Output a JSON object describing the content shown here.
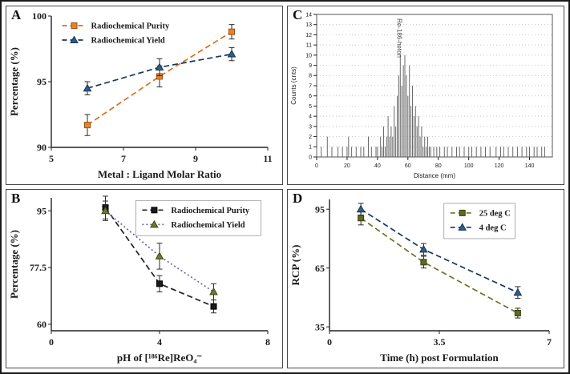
{
  "figure": {
    "panels": [
      {
        "label": "A"
      },
      {
        "label": "C"
      },
      {
        "label": "B"
      },
      {
        "label": "D"
      }
    ]
  },
  "colors": {
    "purity_orange": "#e8832c",
    "yield_blue": "#2e5f8a",
    "olive_green": "#6e7b2f",
    "axis_black": "#222222"
  },
  "chart_data": [
    {
      "panel": "A",
      "type": "line",
      "xlabel": "Metal : Ligand Molar Ratio",
      "ylabel": "Percentage (%)",
      "xlim": [
        5,
        11
      ],
      "ylim": [
        90,
        100
      ],
      "xticks": [
        5,
        7,
        9,
        11
      ],
      "yticks": [
        90,
        95,
        100
      ],
      "margins": {
        "l": 56,
        "r": 18,
        "t": 12,
        "b": 46
      },
      "tick_font": 12,
      "label_font": 13,
      "legend": {
        "x": 0.05,
        "y": 0.0,
        "box": false
      },
      "series": [
        {
          "name": "Radiochemical Purity",
          "marker": "square",
          "color": "#e8832c",
          "edge": "#9a4f0f",
          "line_color": "#d96f1e",
          "linestyle": "dashed",
          "x": [
            6,
            8,
            10
          ],
          "y": [
            91.7,
            95.4,
            98.8
          ],
          "yerr": [
            0.8,
            0.8,
            0.55
          ]
        },
        {
          "name": "Radiochemical Yield",
          "marker": "triangle",
          "color": "#2e5f8a",
          "edge": "#16324f",
          "line_color": "#17365d",
          "linestyle": "dashed",
          "x": [
            6,
            8,
            10
          ],
          "y": [
            94.5,
            96.1,
            97.1
          ],
          "yerr": [
            0.5,
            0.65,
            0.5
          ]
        }
      ]
    },
    {
      "panel": "C",
      "type": "spikes",
      "xlabel": "Distance (mm)",
      "ylabel": "Counts (cnts)",
      "xlim": [
        0,
        155
      ],
      "ylim": [
        0,
        14
      ],
      "xticks": [
        0,
        20,
        40,
        60,
        80,
        100,
        120,
        140
      ],
      "yticks": [
        0,
        1,
        2,
        3,
        4,
        5,
        6,
        7,
        8,
        9,
        10,
        11,
        12,
        13,
        14
      ],
      "margins": {
        "l": 36,
        "r": 14,
        "t": 10,
        "b": 34
      },
      "tick_font": 7,
      "label_font": 8,
      "grid": true,
      "frame": true,
      "annotation": {
        "text": "Re-186-heton",
        "x": 53,
        "y": 13.6,
        "rotate": 90
      },
      "spikes": {
        "x0": 0,
        "dx": 1,
        "color": "#6a6a6a",
        "values": [
          1,
          0,
          0,
          1,
          0,
          0,
          0,
          2,
          0,
          0,
          1,
          0,
          0,
          0,
          1,
          0,
          0,
          1,
          0,
          0,
          1,
          2,
          0,
          1,
          0,
          0,
          1,
          0,
          0,
          1,
          0,
          1,
          0,
          0,
          2,
          0,
          1,
          0,
          0,
          1,
          1,
          0,
          2,
          1,
          3,
          1,
          2,
          4,
          2,
          3,
          2,
          5,
          3,
          6,
          8,
          10,
          7,
          9,
          10,
          8,
          6,
          9,
          5,
          7,
          4,
          5,
          3,
          4,
          2,
          3,
          1,
          2,
          1,
          2,
          1,
          1,
          0,
          1,
          0,
          1,
          0,
          1,
          0,
          0,
          1,
          0,
          1,
          0,
          0,
          1,
          0,
          0,
          1,
          0,
          1,
          0,
          0,
          1,
          0,
          0,
          1,
          0,
          1,
          0,
          0,
          1,
          0,
          0,
          1,
          0,
          0,
          1,
          0,
          0,
          1,
          0,
          0,
          0,
          1,
          0,
          0,
          1,
          0,
          1,
          0,
          0,
          1,
          0,
          0,
          1,
          0,
          0,
          1,
          0,
          0,
          1,
          0,
          0,
          1,
          0,
          1,
          0,
          0,
          1,
          0,
          1,
          0,
          0,
          1,
          0,
          1
        ]
      }
    },
    {
      "panel": "B",
      "type": "line",
      "xlabel": "pH of [¹⁸⁶Re]ReO₄⁻",
      "ylabel": "Percentage (%)",
      "xlim": [
        0,
        8
      ],
      "ylim": [
        58,
        99
      ],
      "xticks": [
        0,
        4,
        8
      ],
      "yticks": [
        60,
        77.5,
        95
      ],
      "margins": {
        "l": 56,
        "r": 18,
        "t": 10,
        "b": 46
      },
      "tick_font": 12,
      "label_font": 13,
      "legend": {
        "x": 0.42,
        "y": 0.02,
        "box": true
      },
      "series": [
        {
          "name": "Radiochemical Purity",
          "marker": "square",
          "color": "#1a1a1a",
          "edge": "#000000",
          "line_color": "#222222",
          "linestyle": "dashed",
          "x": [
            2,
            4,
            6
          ],
          "y": [
            96,
            72.5,
            65.5
          ],
          "yerr": [
            3.5,
            2.5,
            2
          ]
        },
        {
          "name": "Radiochemical Yield",
          "marker": "triangle",
          "color": "#6e7b2f",
          "edge": "#3f4517",
          "line_color": "#6767a8",
          "linestyle": "dotted",
          "x": [
            2,
            4,
            6
          ],
          "y": [
            95,
            81,
            70
          ],
          "yerr": [
            3,
            4,
            2.5
          ]
        }
      ]
    },
    {
      "panel": "D",
      "type": "line",
      "xlabel": "Time (h) post Formulation",
      "ylabel": "RCP (%)",
      "xlim": [
        0,
        7
      ],
      "ylim": [
        33,
        100
      ],
      "xticks": [
        0,
        3.5,
        7
      ],
      "yticks": [
        35,
        65,
        95
      ],
      "margins": {
        "l": 52,
        "r": 18,
        "t": 12,
        "b": 46
      },
      "tick_font": 12,
      "label_font": 13,
      "legend": {
        "x": 0.55,
        "y": 0.03,
        "box": true
      },
      "series": [
        {
          "name": "25 deg C",
          "marker": "square",
          "color": "#5f6b22",
          "edge": "#33400f",
          "line_color": "#6b7426",
          "linestyle": "dashed",
          "x": [
            1,
            3,
            6
          ],
          "y": [
            90.5,
            68,
            42
          ],
          "yerr": [
            3.5,
            3,
            2.5
          ]
        },
        {
          "name": "4 deg C",
          "marker": "triangle",
          "color": "#2e5f8a",
          "edge": "#16324f",
          "line_color": "#17365d",
          "linestyle": "dashed",
          "x": [
            1,
            3,
            6
          ],
          "y": [
            95,
            74.5,
            52.5
          ],
          "yerr": [
            3,
            3,
            3
          ]
        }
      ]
    }
  ]
}
